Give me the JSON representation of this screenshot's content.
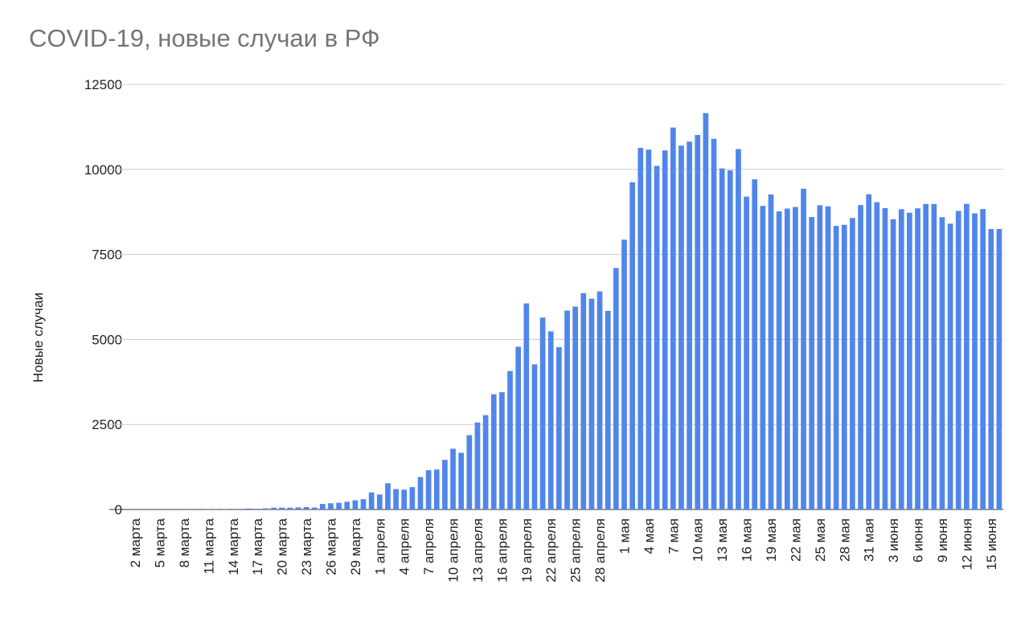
{
  "chart_data": {
    "type": "bar",
    "title": "COVID-19, новые случаи в РФ",
    "y_label": "Новые случаи",
    "categories": [
      "2 марта",
      null,
      null,
      "5 марта",
      null,
      null,
      "8 марта",
      null,
      null,
      "11 марта",
      null,
      null,
      "14 марта",
      null,
      null,
      "17 марта",
      null,
      null,
      "20 марта",
      null,
      null,
      "23 марта",
      null,
      null,
      "26 марта",
      null,
      null,
      "29 марта",
      null,
      null,
      "1 апреля",
      null,
      null,
      "4 апреля",
      null,
      null,
      "7 апреля",
      null,
      null,
      "10 апреля",
      null,
      null,
      "13 апреля",
      null,
      null,
      "16 апреля",
      null,
      null,
      "19 апреля",
      null,
      null,
      "22 апреля",
      null,
      null,
      "25 апреля",
      null,
      null,
      "28 апреля",
      null,
      null,
      "1 мая",
      null,
      null,
      "4 мая",
      null,
      null,
      "7 мая",
      null,
      null,
      "10 мая",
      null,
      null,
      "13 мая",
      null,
      null,
      "16 мая",
      null,
      null,
      "19 мая",
      null,
      null,
      "22 мая",
      null,
      null,
      "25 мая",
      null,
      null,
      "28 мая",
      null,
      null,
      "31 мая",
      null,
      null,
      "3 июня",
      null,
      null,
      "6 июня",
      null,
      null,
      "9 июня",
      null,
      null,
      "12 июня",
      null,
      null,
      "15 июня",
      null
    ],
    "values": [
      1,
      0,
      0,
      1,
      0,
      0,
      3,
      1,
      0,
      8,
      6,
      14,
      4,
      4,
      29,
      21,
      33,
      52,
      54,
      53,
      61,
      71,
      57,
      163,
      182,
      196,
      228,
      270,
      302,
      501,
      440,
      771,
      601,
      582,
      658,
      954,
      1154,
      1175,
      1459,
      1786,
      1667,
      2186,
      2558,
      2774,
      3388,
      3448,
      4070,
      4785,
      6060,
      4268,
      5642,
      5236,
      4774,
      5849,
      5966,
      6361,
      6198,
      6411,
      5841,
      7099,
      7933,
      9623,
      10633,
      10581,
      10102,
      10559,
      11231,
      10699,
      10817,
      11012,
      11656,
      10899,
      10028,
      9974,
      10598,
      9200,
      9709,
      8926,
      9263,
      8764,
      8849,
      8894,
      9434,
      8599,
      8946,
      8915,
      8338,
      8371,
      8572,
      8952,
      9268,
      9035,
      8863,
      8536,
      8831,
      8726,
      8855,
      8984,
      8985,
      8595,
      8404,
      8779,
      8987,
      8706,
      8835,
      8246,
      8248
    ],
    "color": "#5086ec",
    "ylim": [
      0,
      12500
    ],
    "yticks": [
      0,
      2500,
      5000,
      7500,
      10000,
      12500
    ],
    "grid": true
  }
}
